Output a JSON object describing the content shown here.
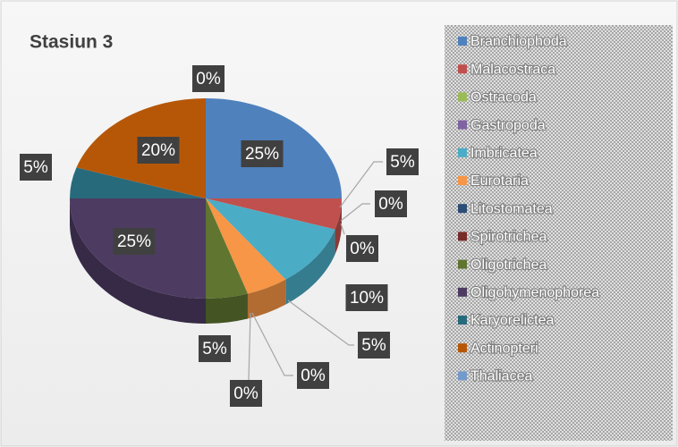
{
  "chart_data": {
    "type": "pie",
    "title": "Stasiun 3",
    "categories": [
      "Branchiophoda",
      "Malacostraca",
      "Ostracoda",
      "Gastropoda",
      "Imbricatea",
      "Eurotaria",
      "Litostomatea",
      "Spirotrichea",
      "Oligotrichea",
      "Oligohymenophorea",
      "Karyorelictea",
      "Actinopteri",
      "Thaliacea"
    ],
    "values": [
      25,
      5,
      0,
      0,
      10,
      5,
      0,
      0,
      5,
      25,
      5,
      20,
      0
    ],
    "value_labels": [
      "25%",
      "5%",
      "0%",
      "0%",
      "10%",
      "5%",
      "0%",
      "0%",
      "5%",
      "25%",
      "5%",
      "20%",
      "0%"
    ],
    "colors": [
      "#4f81bd",
      "#c0504d",
      "#9bbb59",
      "#8064a2",
      "#4bacc6",
      "#f79646",
      "#2c4d75",
      "#772c2a",
      "#5f7530",
      "#4d3b62",
      "#276a7c",
      "#b65708",
      "#729aca"
    ],
    "legend": "right"
  }
}
